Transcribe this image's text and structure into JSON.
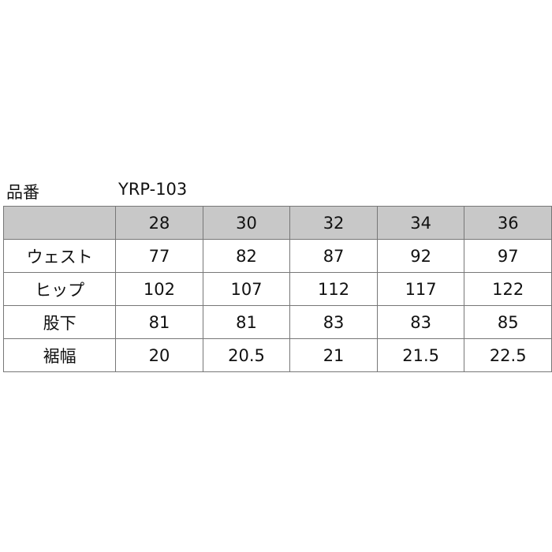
{
  "product": {
    "label": "品番",
    "code": "YRP-103"
  },
  "table": {
    "header": [
      "28",
      "30",
      "32",
      "34",
      "36"
    ],
    "rows": [
      [
        "ウェスト",
        "77",
        "82",
        "87",
        "92",
        "97"
      ],
      [
        "ヒップ",
        "102",
        "107",
        "112",
        "117",
        "122"
      ],
      [
        "股下",
        "81",
        "81",
        "83",
        "83",
        "85"
      ],
      [
        "裾幅",
        "20",
        "20.5",
        "21",
        "21.5",
        "22.5"
      ]
    ]
  }
}
